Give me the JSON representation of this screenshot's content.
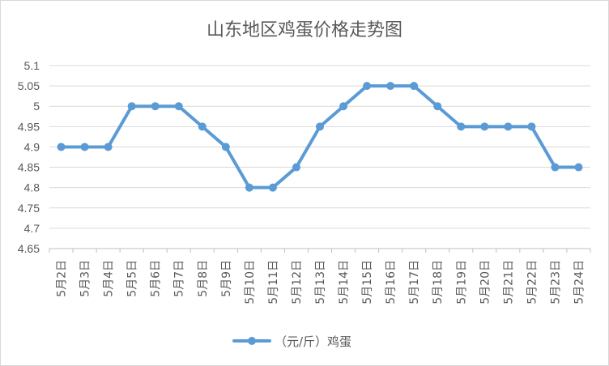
{
  "chart_data": {
    "type": "line",
    "title": "山东地区鸡蛋价格走势图",
    "xlabel": "",
    "ylabel": "",
    "categories": [
      "5月2日",
      "5月3日",
      "5月4日",
      "5月5日",
      "5月6日",
      "5月7日",
      "5月8日",
      "5月9日",
      "5月10日",
      "5月11日",
      "5月12日",
      "5月13日",
      "5月14日",
      "5月15日",
      "5月16日",
      "5月17日",
      "5月18日",
      "5月19日",
      "5月20日",
      "5月21日",
      "5月22日",
      "5月23日",
      "5月24日"
    ],
    "series": [
      {
        "name": "（元/斤）鸡蛋",
        "color": "#5b9bd5",
        "values": [
          4.9,
          4.9,
          4.9,
          5.0,
          5.0,
          5.0,
          4.95,
          4.9,
          4.8,
          4.8,
          4.85,
          4.95,
          5.0,
          5.05,
          5.05,
          5.05,
          5.0,
          4.95,
          4.95,
          4.95,
          4.95,
          4.85,
          4.85
        ]
      }
    ],
    "ylim": [
      4.65,
      5.1
    ],
    "yticks": [
      "4.65",
      "4.7",
      "4.75",
      "4.8",
      "4.85",
      "4.9",
      "4.95",
      "5",
      "5.05",
      "5.1"
    ],
    "grid": true,
    "legend_position": "bottom"
  }
}
